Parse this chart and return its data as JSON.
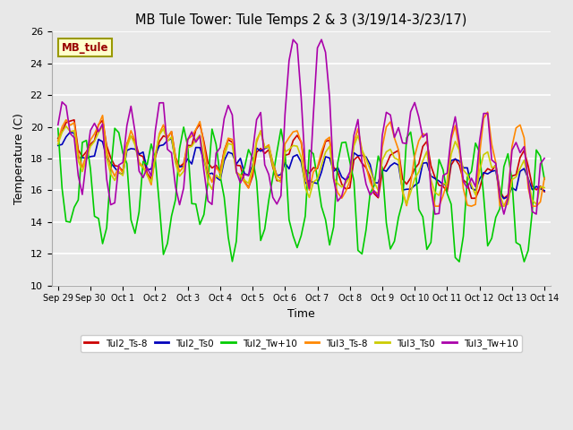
{
  "title": "MB Tule Tower: Tule Temps 2 & 3 (3/19/14-3/23/17)",
  "xlabel": "Time",
  "ylabel": "Temperature (C)",
  "ylim": [
    10,
    26
  ],
  "xlim": [
    -0.2,
    15.2
  ],
  "xtick_positions": [
    0,
    1,
    2,
    3,
    4,
    5,
    6,
    7,
    8,
    9,
    10,
    11,
    12,
    13,
    14,
    15
  ],
  "xtick_labels": [
    "Sep 29",
    "Sep 30",
    "Oct 1",
    "Oct 2",
    "Oct 3",
    "Oct 4",
    "Oct 5",
    "Oct 6",
    "Oct 7",
    "Oct 8",
    "Oct 9",
    "Oct 10",
    "Oct 11",
    "Oct 12",
    "Oct 13",
    "Oct 14"
  ],
  "ytick_positions": [
    10,
    12,
    14,
    16,
    18,
    20,
    22,
    24,
    26
  ],
  "plot_bg_color": "#e8e8e8",
  "fig_bg_color": "#e8e8e8",
  "grid_color": "#ffffff",
  "line_colors": {
    "Tul2_Ts8": "#cc0000",
    "Tul2_Ts0": "#0000bb",
    "Tul2_Tw10": "#00cc00",
    "Tul3_Ts8": "#ff8800",
    "Tul3_Ts0": "#cccc00",
    "Tul3_Tw10": "#aa00aa"
  },
  "legend_labels": [
    "Tul2_Ts-8",
    "Tul2_Ts0",
    "Tul2_Tw+10",
    "Tul3_Ts-8",
    "Tul3_Ts0",
    "Tul3_Tw+10"
  ],
  "label_box_text": "MB_tule",
  "label_box_color": "#ffffcc",
  "label_box_text_color": "#990000",
  "label_box_edge_color": "#999900"
}
